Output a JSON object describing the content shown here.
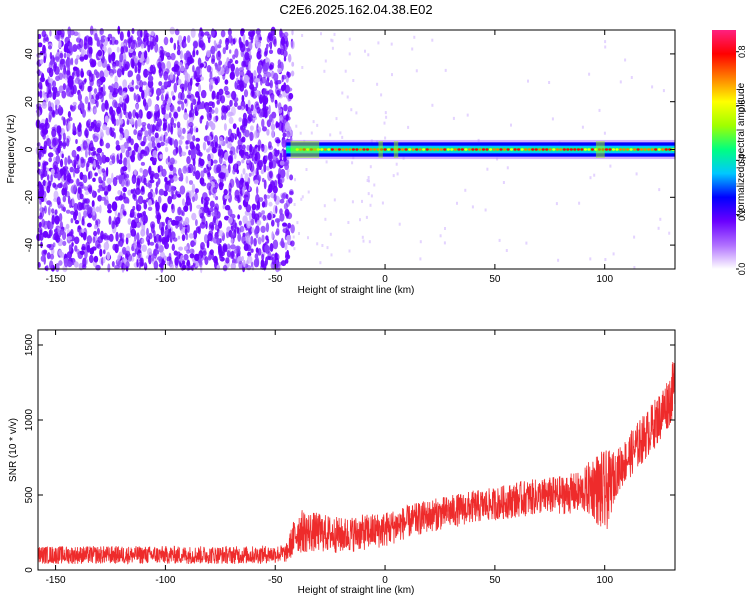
{
  "title": "C2E6.2025.162.04.38.E02",
  "chart_data": [
    {
      "type": "heatmap",
      "xlabel": "Height of straight line (km)",
      "ylabel": "Frequency (Hz)",
      "xlim": [
        -158,
        132
      ],
      "ylim": [
        -50,
        50
      ],
      "xticks": [
        -150,
        -100,
        -50,
        0,
        50,
        100
      ],
      "yticks": [
        -40,
        -20,
        0,
        20,
        40
      ],
      "tick_labels_x": [
        "-150",
        "-100",
        "-50",
        "0",
        "50",
        "100"
      ],
      "tick_labels_y": [
        "-40",
        "-20",
        "0",
        "20",
        "40"
      ],
      "regions": [
        {
          "name": "noise",
          "x_range": [
            -158,
            -45
          ],
          "freq_range": [
            -50,
            50
          ]
        },
        {
          "name": "signal",
          "x_range": [
            -45,
            132
          ],
          "freq_center": 0,
          "freq_halfwidth": 3
        }
      ],
      "colorbar": {
        "label": "Normalized spectral amplitude",
        "range": [
          0,
          0.88
        ],
        "ticks": [
          0.0,
          0.2,
          0.4,
          0.6,
          0.8
        ],
        "tick_labels": [
          "0.0",
          "0.2",
          "0.4",
          "0.6",
          "0.8"
        ],
        "colormap": [
          "#ffffff",
          "#b070ff",
          "#6a00ff",
          "#0000ff",
          "#00c8ff",
          "#00ff80",
          "#a0ff00",
          "#ffff00",
          "#ff8000",
          "#ff0000",
          "#ff2080"
        ]
      }
    },
    {
      "type": "line",
      "xlabel": "Height of straight line (km)",
      "ylabel": "SNR (10 * v/v)",
      "xlim": [
        -158,
        132
      ],
      "ylim": [
        0,
        1600
      ],
      "xticks": [
        -150,
        -100,
        -50,
        0,
        50,
        100
      ],
      "yticks": [
        0,
        500,
        1000,
        1500
      ],
      "tick_labels_x": [
        "-150",
        "-100",
        "-50",
        "0",
        "50",
        "100"
      ],
      "tick_labels_y": [
        "0",
        "500",
        "1000",
        "1500"
      ],
      "color": "#ee2b2b",
      "series": [
        {
          "x": [
            -158,
            -140,
            -120,
            -100,
            -80,
            -60,
            -45,
            -40,
            -30,
            -20,
            -10,
            0,
            10,
            20,
            30,
            40,
            50,
            60,
            70,
            80,
            90,
            95,
            100,
            105,
            110,
            115,
            120,
            125,
            130,
            132
          ],
          "y": [
            100,
            100,
            100,
            100,
            100,
            100,
            110,
            260,
            250,
            230,
            250,
            270,
            320,
            360,
            390,
            420,
            440,
            470,
            490,
            500,
            520,
            560,
            500,
            640,
            740,
            830,
            920,
            1020,
            1150,
            1250
          ],
          "noise": [
            60,
            60,
            60,
            60,
            60,
            60,
            60,
            150,
            130,
            120,
            120,
            120,
            110,
            110,
            110,
            110,
            110,
            120,
            120,
            130,
            140,
            220,
            300,
            150,
            150,
            160,
            160,
            170,
            180,
            200
          ]
        }
      ]
    }
  ]
}
